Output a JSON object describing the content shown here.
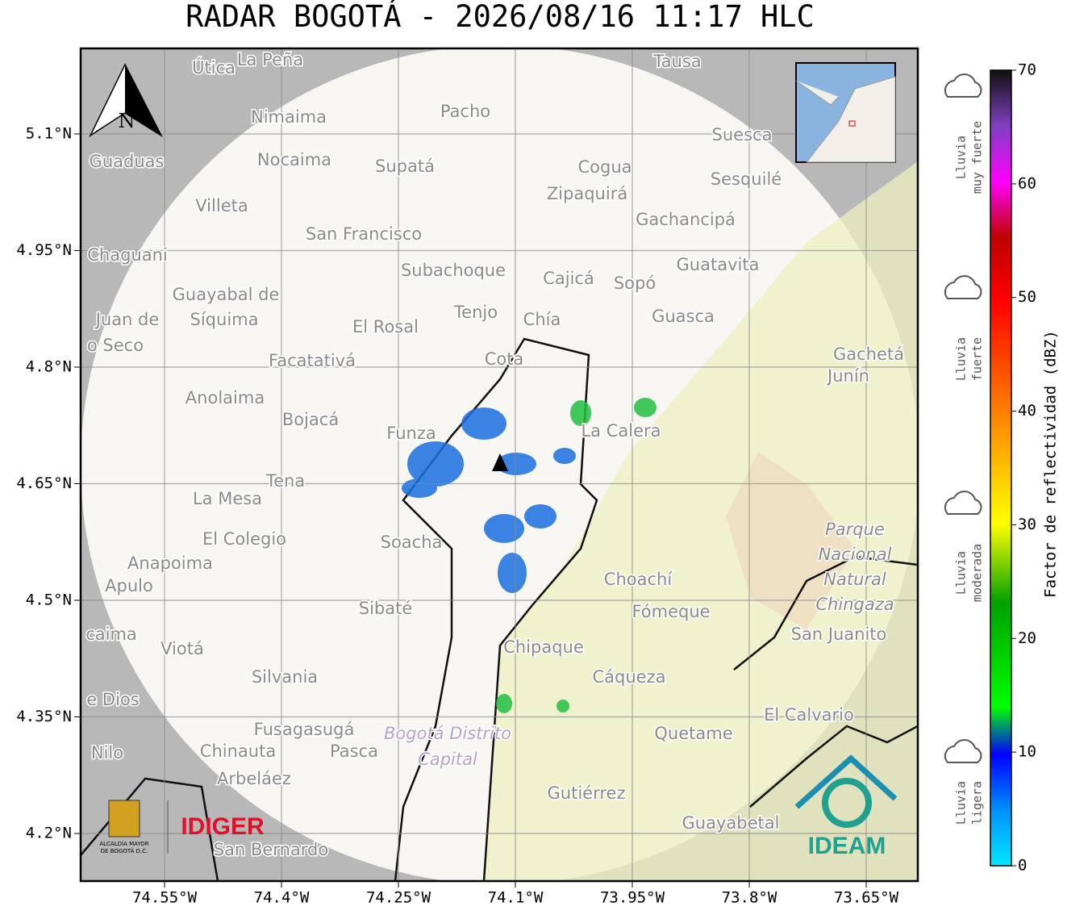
{
  "title": "RADAR BOGOTÁ - 2026/08/16 11:17 HLC",
  "map": {
    "xticks": [
      {
        "value": -74.55,
        "label": "74.55°W"
      },
      {
        "value": -74.4,
        "label": "74.4°W"
      },
      {
        "value": -74.25,
        "label": "74.25°W"
      },
      {
        "value": -74.1,
        "label": "74.1°W"
      },
      {
        "value": -73.95,
        "label": "73.95°W"
      },
      {
        "value": -73.8,
        "label": "73.8°W"
      },
      {
        "value": -73.65,
        "label": "73.65°W"
      }
    ],
    "yticks": [
      {
        "value": 5.1,
        "label": "5.1°N"
      },
      {
        "value": 4.95,
        "label": "4.95°N"
      },
      {
        "value": 4.8,
        "label": "4.8°N"
      },
      {
        "value": 4.65,
        "label": "4.65°N"
      },
      {
        "value": 4.5,
        "label": "4.5°N"
      },
      {
        "value": 4.35,
        "label": "4.35°N"
      },
      {
        "value": 4.2,
        "label": "4.2°N"
      }
    ],
    "north": "N",
    "places": [
      "Útica",
      "La Peña",
      "Tausa",
      "Pacho",
      "Nimaima",
      "Guaduas",
      "Nocaima",
      "Supatá",
      "Cogua",
      "Suesca",
      "Sesquilé",
      "Zipaquirá",
      "Villeta",
      "Gachancipá",
      "San Francisco",
      "Chaguani",
      "Guatavita",
      "Subachoque",
      "Cajicá",
      "Sopó",
      "Guayabal de",
      "Síquima",
      "Tenjo",
      "Chía",
      "Guasca",
      "El Rosal",
      "Facatativá",
      "Cota",
      "Gachetá",
      "Junín",
      "Anolaima",
      "Bojacá",
      "La Calera",
      "Funza",
      "Tena",
      "La Mesa",
      "El Colegio",
      "Soacha",
      "Anapoima",
      "Apulo",
      "Choachí",
      "Sibaté",
      "Fómeque",
      "San Juanito",
      "Viotá",
      "Chipaque",
      "Silvania",
      "Cáqueza",
      "El Calvario",
      "Fusagasugá",
      "Quetame",
      "Chinauta",
      "Pasca",
      "Arbeláez",
      "Gutiérrez",
      "Guayabetal",
      "San Bernardo",
      "Nilo",
      "Juan de",
      "o Seco",
      "e Dios",
      "caima"
    ],
    "park": [
      "Parque",
      "Nacional",
      "Natural",
      "Chingaza"
    ],
    "district": [
      "Bogotá Distrito",
      "Capital"
    ],
    "logos": {
      "alcaldia": [
        "ALCALDÍA MAYOR",
        "DE BOGOTÁ D.C."
      ],
      "idiger": "IDIGER",
      "ideam": "IDEAM"
    }
  },
  "colorbar": {
    "label": "Factor de reflectividad (dBZ)",
    "lim": [
      0,
      70
    ],
    "ticks": [
      0,
      10,
      20,
      30,
      40,
      50,
      60,
      70
    ],
    "legend": [
      [
        "Lluvia",
        "muy fuerte"
      ],
      [
        "Lluvia",
        "fuerte"
      ],
      [
        "Lluvia",
        "moderada"
      ],
      [
        "Lluvia",
        "ligera"
      ]
    ]
  }
}
